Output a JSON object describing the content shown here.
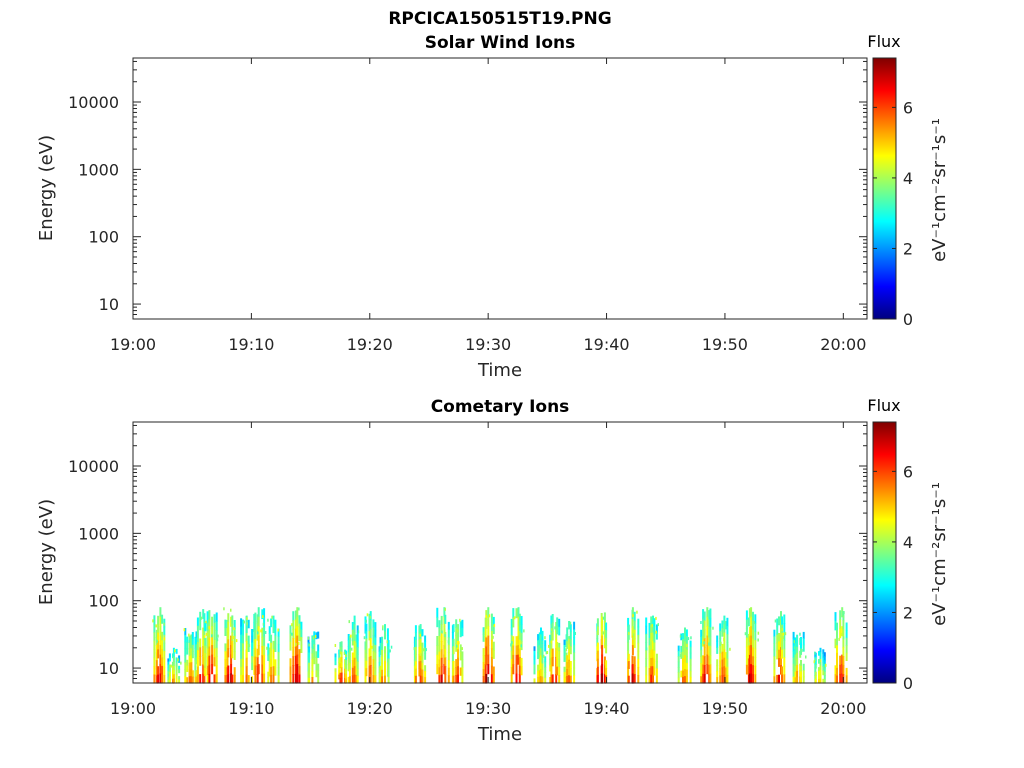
{
  "figure": {
    "main_title": "RPCICA150515T19.PNG"
  },
  "colorbar": {
    "title": "Flux",
    "label": "eV⁻¹cm⁻²sr⁻¹s⁻¹",
    "range": [
      0,
      7.4
    ],
    "ticks": [
      "0",
      "2",
      "4",
      "6"
    ],
    "colormap": "jet"
  },
  "chart_data": [
    {
      "type": "heatmap",
      "title": "Solar Wind Ions",
      "xlabel": "Time",
      "ylabel": "Energy (eV)",
      "x_ticks": [
        "19:00",
        "19:10",
        "19:20",
        "19:30",
        "19:40",
        "19:50",
        "20:00"
      ],
      "xlim": [
        "19:00",
        "20:02"
      ],
      "y_ticks": [
        "10",
        "100",
        "1000",
        "10000"
      ],
      "ylim": [
        6,
        45000
      ],
      "y_scale": "log",
      "bursts": []
    },
    {
      "type": "heatmap",
      "title": "Cometary Ions",
      "xlabel": "Time",
      "ylabel": "Energy (eV)",
      "x_ticks": [
        "19:00",
        "19:10",
        "19:20",
        "19:30",
        "19:40",
        "19:50",
        "20:00"
      ],
      "xlim": [
        "19:00",
        "20:02"
      ],
      "y_ticks": [
        "10",
        "100",
        "1000",
        "10000"
      ],
      "ylim": [
        6,
        45000
      ],
      "y_scale": "log",
      "bursts": [
        {
          "time": "19:02.2",
          "emax": 80,
          "peak": 7.0
        },
        {
          "time": "19:03.4",
          "emax": 20,
          "peak": 5.5
        },
        {
          "time": "19:04.8",
          "emax": 40,
          "peak": 6.0
        },
        {
          "time": "19:05.8",
          "emax": 75,
          "peak": 6.5
        },
        {
          "time": "19:06.6",
          "emax": 80,
          "peak": 6.8
        },
        {
          "time": "19:08.2",
          "emax": 80,
          "peak": 7.2
        },
        {
          "time": "19:09.6",
          "emax": 60,
          "peak": 6.0
        },
        {
          "time": "19:10.6",
          "emax": 80,
          "peak": 6.8
        },
        {
          "time": "19:11.8",
          "emax": 60,
          "peak": 5.8
        },
        {
          "time": "19:13.8",
          "emax": 80,
          "peak": 7.3
        },
        {
          "time": "19:15.2",
          "emax": 35,
          "peak": 5.5
        },
        {
          "time": "19:17.6",
          "emax": 25,
          "peak": 6.5
        },
        {
          "time": "19:18.6",
          "emax": 60,
          "peak": 6.0
        },
        {
          "time": "19:20.0",
          "emax": 70,
          "peak": 6.2
        },
        {
          "time": "19:21.2",
          "emax": 45,
          "peak": 5.6
        },
        {
          "time": "19:24.2",
          "emax": 45,
          "peak": 6.3
        },
        {
          "time": "19:26.2",
          "emax": 80,
          "peak": 6.9
        },
        {
          "time": "19:27.4",
          "emax": 60,
          "peak": 6.3
        },
        {
          "time": "19:30.0",
          "emax": 80,
          "peak": 7.3
        },
        {
          "time": "19:32.4",
          "emax": 80,
          "peak": 7.0
        },
        {
          "time": "19:34.4",
          "emax": 40,
          "peak": 5.6
        },
        {
          "time": "19:35.6",
          "emax": 65,
          "peak": 6.5
        },
        {
          "time": "19:36.8",
          "emax": 50,
          "peak": 6.0
        },
        {
          "time": "19:39.6",
          "emax": 80,
          "peak": 7.3
        },
        {
          "time": "19:42.2",
          "emax": 80,
          "peak": 7.1
        },
        {
          "time": "19:43.8",
          "emax": 60,
          "peak": 6.3
        },
        {
          "time": "19:46.6",
          "emax": 40,
          "peak": 6.0
        },
        {
          "time": "19:48.4",
          "emax": 80,
          "peak": 6.8
        },
        {
          "time": "19:49.8",
          "emax": 60,
          "peak": 6.4
        },
        {
          "time": "19:52.2",
          "emax": 80,
          "peak": 7.2
        },
        {
          "time": "19:54.6",
          "emax": 70,
          "peak": 6.7
        },
        {
          "time": "19:56.2",
          "emax": 35,
          "peak": 5.7
        },
        {
          "time": "19:58.0",
          "emax": 20,
          "peak": 5.3
        },
        {
          "time": "19:59.8",
          "emax": 80,
          "peak": 6.8
        }
      ]
    }
  ]
}
